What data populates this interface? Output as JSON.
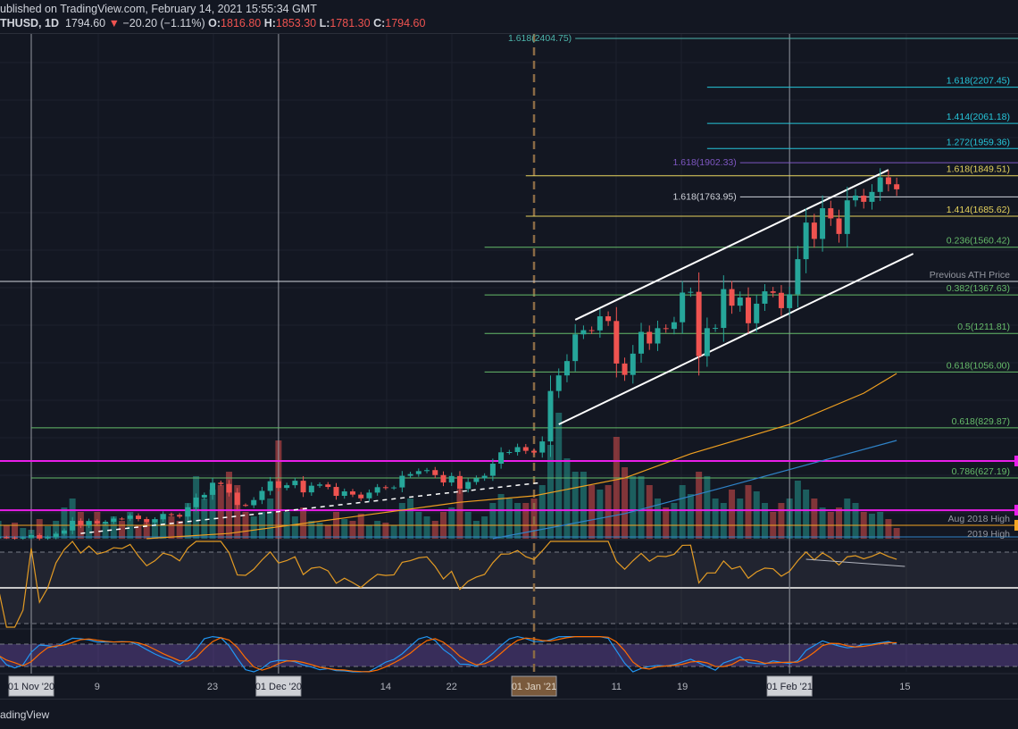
{
  "header": {
    "published": "ublished on TradingView.com, February 14, 2021 15:55:34 GMT",
    "symbol": "THUSD, 1D",
    "last": "1794.60",
    "change_arrow": "▼",
    "change": "−20.20 (−1.11%)",
    "o_label": "O:",
    "o": "1816.80",
    "h_label": "H:",
    "h": "1853.30",
    "l_label": "L:",
    "l": "1781.30",
    "c_label": "C:",
    "c": "1794.60"
  },
  "footer": {
    "brand": "adingView"
  },
  "colors": {
    "bg": "#131722",
    "up": "#26a69a",
    "down": "#ef5350",
    "cyan": "#26c6da",
    "teal": "#4db6ac",
    "yellow": "#e5d25c",
    "green": "#66bb6a",
    "purple": "#7e57c2",
    "magenta": "#e91ee9",
    "orange": "#f5a623",
    "ma_orange": "#f0a020",
    "ma_blue": "#2f83c8",
    "rsi": "#e39b24",
    "stoch_k": "#2196f3",
    "stoch_d": "#ff6d00"
  },
  "chart_data": {
    "type": "candlestick",
    "symbol": "ETHUSD",
    "interval": "1D",
    "start_date": "2020-10-28",
    "closes": [
      388,
      386,
      383,
      386,
      396,
      383,
      388,
      402,
      415,
      454,
      435,
      453,
      444,
      450,
      463,
      462,
      475,
      461,
      448,
      460,
      481,
      478,
      471,
      509,
      548,
      559,
      608,
      603,
      568,
      518,
      517,
      538,
      575,
      614,
      587,
      598,
      616,
      569,
      596,
      601,
      591,
      555,
      573,
      560,
      545,
      568,
      590,
      587,
      589,
      636,
      643,
      655,
      659,
      639,
      609,
      635,
      583,
      611,
      626,
      636,
      685,
      731,
      732,
      752,
      737,
      730,
      775,
      979,
      1042,
      1100,
      1208,
      1225,
      1224,
      1281,
      1262,
      1090,
      1044,
      1130,
      1218,
      1171,
      1233,
      1230,
      1257,
      1377,
      1380,
      1120,
      1233,
      1234,
      1391,
      1324,
      1357,
      1253,
      1332,
      1382,
      1376,
      1314,
      1370,
      1512,
      1660,
      1594,
      1718,
      1677,
      1614,
      1750,
      1769,
      1744,
      1784,
      1843,
      1815,
      1794.6
    ],
    "volumes": [
      20,
      15,
      18,
      12,
      10,
      22,
      14,
      20,
      35,
      45,
      30,
      20,
      30,
      18,
      25,
      20,
      30,
      15,
      18,
      22,
      28,
      25,
      20,
      40,
      70,
      45,
      55,
      60,
      75,
      60,
      30,
      25,
      30,
      45,
      110,
      30,
      25,
      35,
      20,
      18,
      15,
      30,
      22,
      20,
      28,
      15,
      20,
      18,
      15,
      40,
      45,
      30,
      25,
      20,
      30,
      35,
      55,
      30,
      20,
      25,
      40,
      50,
      45,
      40,
      40,
      45,
      60,
      105,
      141,
      90,
      75,
      75,
      60,
      55,
      60,
      114,
      80,
      70,
      70,
      60,
      45,
      35,
      40,
      60,
      50,
      75,
      70,
      45,
      40,
      55,
      45,
      60,
      53,
      40,
      30,
      40,
      45,
      65,
      55,
      45,
      35,
      30,
      35,
      45,
      40,
      30,
      28,
      30,
      22,
      12
    ],
    "price_range": [
      389,
      2404.75
    ],
    "levels": [
      {
        "price": 2404.75,
        "label": "1.618(2404.75)",
        "color": "teal",
        "from": "2021-01-06",
        "label_pos": "left"
      },
      {
        "price": 2207.45,
        "label": "1.618(2207.45)",
        "color": "cyan",
        "from": "2021-01-22",
        "label_pos": "right"
      },
      {
        "price": 2061.18,
        "label": "1.414(2061.18)",
        "color": "cyan",
        "from": "2021-01-22",
        "label_pos": "right"
      },
      {
        "price": 1959.36,
        "label": "1.272(1959.36)",
        "color": "cyan",
        "from": "2021-01-22",
        "label_pos": "right"
      },
      {
        "price": 1902.33,
        "label": "1.618(1902.33)",
        "color": "purple",
        "from": "2021-01-26",
        "label_pos": "left"
      },
      {
        "price": 1849.51,
        "label": "1.618(1849.51)",
        "color": "yellow",
        "from": "2020-12-31",
        "label_pos": "right"
      },
      {
        "price": 1763.95,
        "label": "1.618(1763.95)",
        "color": "white",
        "from": "2021-01-26",
        "label_pos": "left"
      },
      {
        "price": 1685.62,
        "label": "1.414(1685.62)",
        "color": "yellow",
        "from": "2020-12-31",
        "label_pos": "right"
      },
      {
        "price": 1560.42,
        "label": "0.236(1560.42)",
        "color": "green",
        "from": "2020-12-26",
        "label_pos": "right"
      },
      {
        "price": 1422,
        "label": "Previous ATH Price",
        "color": "white",
        "from": "2020-10-28",
        "label_pos": "right"
      },
      {
        "price": 1367.63,
        "label": "0.382(1367.63)",
        "color": "green",
        "from": "2020-12-26",
        "label_pos": "right"
      },
      {
        "price": 1211.81,
        "label": "0.5(1211.81)",
        "color": "green",
        "from": "2020-12-26",
        "label_pos": "right"
      },
      {
        "price": 1056.0,
        "label": "0.618(1056.00)",
        "color": "green",
        "from": "2020-12-26",
        "label_pos": "right"
      },
      {
        "price": 829.87,
        "label": "0.618(829.87)",
        "color": "green",
        "from": "2020-11-01",
        "label_pos": "right"
      },
      {
        "price": 696,
        "label": "",
        "color": "magenta",
        "from": "2020-10-28",
        "label_pos": "right"
      },
      {
        "price": 627.19,
        "label": "0.786(627.19)",
        "color": "green",
        "from": "2020-11-01",
        "label_pos": "right"
      },
      {
        "price": 497,
        "label": "",
        "color": "magenta",
        "from": "2020-10-28",
        "label_pos": "right"
      },
      {
        "price": 436,
        "label": "Aug 2018 High",
        "color": "orange",
        "from": "2020-10-28",
        "label_pos": "right"
      },
      {
        "price": 389,
        "label": "2019 High",
        "color": "ma_blue",
        "from": "2020-10-28",
        "label_pos": "right"
      }
    ],
    "trendlines": [
      {
        "name": "channel-upper",
        "from": [
          "2021-01-06",
          1267
        ],
        "to": [
          "2021-02-13",
          1873
        ],
        "style": "solid"
      },
      {
        "name": "channel-lower",
        "from": [
          "2021-01-04",
          844
        ],
        "to": [
          "2021-02-16",
          1534
        ],
        "style": "solid"
      },
      {
        "name": "dashed-support",
        "from": [
          "2020-11-07",
          403
        ],
        "to": [
          "2021-01-02",
          609
        ],
        "style": "dashed"
      }
    ],
    "moving_averages": [
      {
        "name": "ma-orange",
        "color": "ma_orange",
        "points": [
          [
            "2020-11-15",
            382
          ],
          [
            "2020-11-25",
            403
          ],
          [
            "2020-12-08",
            461
          ],
          [
            "2020-12-23",
            529
          ],
          [
            "2021-01-01",
            555
          ],
          [
            "2021-01-12",
            627
          ],
          [
            "2021-01-20",
            725
          ],
          [
            "2021-02-01",
            844
          ],
          [
            "2021-02-10",
            970
          ],
          [
            "2021-02-14",
            1050
          ]
        ]
      },
      {
        "name": "ma-blue",
        "color": "ma_blue",
        "points": [
          [
            "2020-12-27",
            382
          ],
          [
            "2021-01-12",
            483
          ],
          [
            "2021-01-23",
            580
          ],
          [
            "2021-02-14",
            779
          ]
        ]
      }
    ],
    "vertical_markers": [
      "2020-11-01",
      "2020-12-01",
      "2021-02-01"
    ],
    "year_marker": "2021-01-01",
    "rsi": {
      "period": 14,
      "upper": 70,
      "lower": 30,
      "trend": {
        "from": [
          "2021-02-03",
          66
        ],
        "to": [
          "2021-02-15",
          62
        ]
      }
    },
    "stoch_rsi": {
      "upper": 80,
      "lower": 20
    },
    "x_ticks": [
      {
        "date": "2020-11-01",
        "label": "01 Nov '20",
        "boxed": true
      },
      {
        "date": "2020-11-09",
        "label": "9",
        "boxed": false
      },
      {
        "date": "2020-11-23",
        "label": "23",
        "boxed": false
      },
      {
        "date": "2020-12-01",
        "label": "01 Dec '20",
        "boxed": true
      },
      {
        "date": "2020-12-14",
        "label": "14",
        "boxed": false
      },
      {
        "date": "2020-12-22",
        "label": "22",
        "boxed": false
      },
      {
        "date": "2021-01-01",
        "label": "01 Jan '21",
        "boxed": true,
        "highlight": true
      },
      {
        "date": "2021-01-11",
        "label": "11",
        "boxed": false
      },
      {
        "date": "2021-01-19",
        "label": "19",
        "boxed": false
      },
      {
        "date": "2021-02-01",
        "label": "01 Feb '21",
        "boxed": true
      },
      {
        "date": "2021-02-15",
        "label": "15",
        "boxed": false
      }
    ]
  }
}
